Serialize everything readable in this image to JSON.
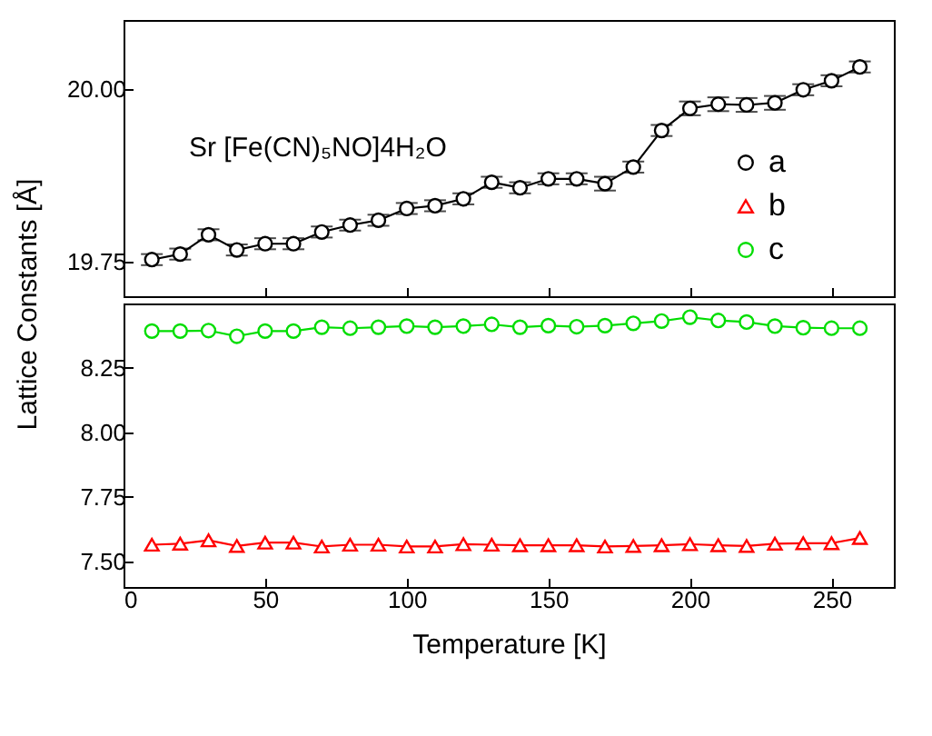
{
  "chart_data": [
    {
      "type": "line",
      "ylabel": "Lattice Constants [Å]",
      "annotations": [
        "Sr [Fe(CN)₅NO]4H₂O"
      ],
      "x": [
        10,
        20,
        30,
        40,
        50,
        60,
        70,
        80,
        90,
        100,
        110,
        120,
        130,
        140,
        150,
        160,
        170,
        180,
        190,
        200,
        210,
        220,
        230,
        240,
        250,
        260
      ],
      "series": [
        {
          "name": "a",
          "color": "#000000",
          "marker": "circle",
          "values": [
            19.753,
            19.761,
            19.789,
            19.767,
            19.776,
            19.776,
            19.793,
            19.803,
            19.81,
            19.827,
            19.831,
            19.841,
            19.865,
            19.857,
            19.87,
            19.87,
            19.863,
            19.887,
            19.94,
            19.972,
            19.978,
            19.977,
            19.98,
            19.999,
            20.012,
            20.032
          ],
          "errors": [
            0.008,
            0.008,
            0.008,
            0.008,
            0.008,
            0.008,
            0.008,
            0.008,
            0.008,
            0.008,
            0.008,
            0.008,
            0.008,
            0.008,
            0.008,
            0.008,
            0.01,
            0.008,
            0.008,
            0.01,
            0.01,
            0.01,
            0.01,
            0.008,
            0.008,
            0.008
          ]
        }
      ],
      "xlim": [
        0,
        272
      ],
      "xticks": [
        0,
        50,
        100,
        150,
        200,
        250
      ],
      "ylim": [
        19.7,
        20.1
      ],
      "yticks": [
        {
          "value": 19.75,
          "label": "19.75"
        },
        {
          "value": 20.0,
          "label": "20.00"
        }
      ],
      "tick_labels": "y",
      "grid": false,
      "legend": "right"
    },
    {
      "type": "line",
      "xlabel": "Temperature [K]",
      "x": [
        10,
        20,
        30,
        40,
        50,
        60,
        70,
        80,
        90,
        100,
        110,
        120,
        130,
        140,
        150,
        160,
        170,
        180,
        190,
        200,
        210,
        220,
        230,
        240,
        250,
        260
      ],
      "series": [
        {
          "name": "b",
          "color": "#ff0000",
          "marker": "triangle",
          "values": [
            7.564,
            7.568,
            7.581,
            7.559,
            7.572,
            7.572,
            7.557,
            7.564,
            7.564,
            7.557,
            7.557,
            7.566,
            7.564,
            7.562,
            7.562,
            7.562,
            7.557,
            7.559,
            7.562,
            7.566,
            7.562,
            7.559,
            7.568,
            7.57,
            7.57,
            7.59
          ]
        },
        {
          "name": "c",
          "color": "#00dd00",
          "marker": "circle",
          "values": [
            8.393,
            8.393,
            8.395,
            8.373,
            8.393,
            8.393,
            8.408,
            8.404,
            8.408,
            8.412,
            8.408,
            8.412,
            8.419,
            8.408,
            8.414,
            8.41,
            8.414,
            8.423,
            8.432,
            8.447,
            8.434,
            8.428,
            8.412,
            8.406,
            8.404,
            8.404
          ]
        }
      ],
      "xlim": [
        0,
        272
      ],
      "xticks": [
        0,
        50,
        100,
        150,
        200,
        250
      ],
      "ylim": [
        7.4,
        8.5
      ],
      "yticks": [
        {
          "value": 7.5,
          "label": "7.50"
        },
        {
          "value": 7.75,
          "label": "7.75"
        },
        {
          "value": 8.0,
          "label": "8.00"
        },
        {
          "value": 8.25,
          "label": "8.25"
        }
      ],
      "grid": false,
      "legend": "right"
    }
  ]
}
